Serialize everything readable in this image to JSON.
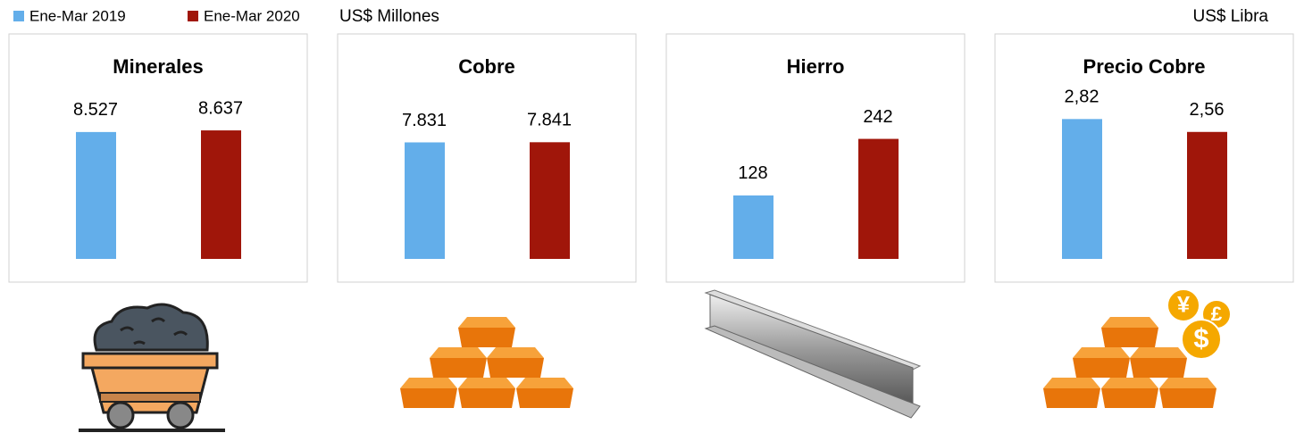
{
  "chart_data": [
    {
      "type": "bar",
      "title": "Minerales",
      "unit": "US$ Millones",
      "series": [
        {
          "name": "Ene-Mar 2019",
          "color": "#63aeea",
          "values": [
            8527
          ],
          "value_labels": [
            "8.527"
          ]
        },
        {
          "name": "Ene-Mar 2020",
          "color": "#a0160a",
          "values": [
            8637
          ],
          "value_labels": [
            "8.637"
          ]
        }
      ],
      "ylim": [
        0,
        12000
      ]
    },
    {
      "type": "bar",
      "title": "Cobre",
      "series": [
        {
          "color": "#63aeea",
          "values": [
            7831
          ],
          "value_labels": [
            "7.831"
          ]
        },
        {
          "color": "#a0160a",
          "values": [
            7841
          ],
          "value_labels": [
            "7.841"
          ]
        }
      ],
      "ylim": [
        0,
        12000
      ]
    },
    {
      "type": "bar",
      "title": "Hierro",
      "series": [
        {
          "color": "#63aeea",
          "values": [
            128
          ]
        },
        {
          "color": "#a0160a",
          "values": [
            242
          ]
        }
      ],
      "ylim": [
        0,
        360
      ]
    },
    {
      "type": "bar",
      "title": "Precio Cobre",
      "unit": "US$ Libra",
      "series": [
        {
          "color": "#63aeea",
          "values": [
            2.82
          ],
          "value_labels": [
            "2,82"
          ]
        },
        {
          "color": "#a0160a",
          "values": [
            2.56
          ],
          "value_labels": [
            "2,56"
          ]
        }
      ],
      "ylim": [
        0,
        3.6
      ]
    }
  ],
  "coin_symbols": [
    "¥",
    "£",
    "$"
  ]
}
